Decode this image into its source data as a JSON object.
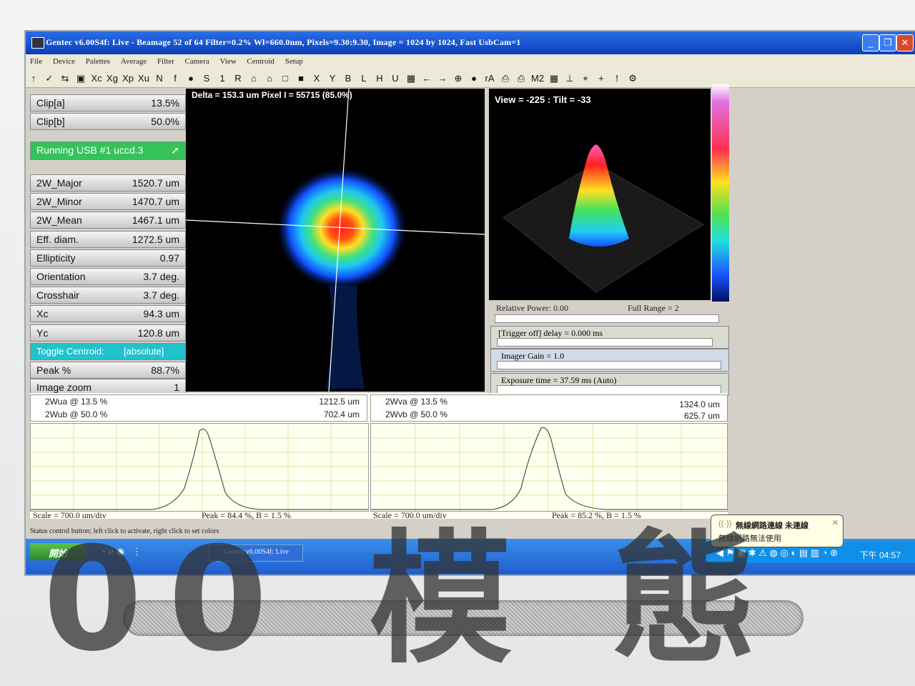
{
  "window": {
    "title": "Gentec v6.00S4f: Live - Beamage 52 of 64       Filter=0.2%     Wl=660.0nm, Pixels=9.30:9.30, Image = 1024 by 1024, Fast   UsbCam=1"
  },
  "menu": [
    "File",
    "Device",
    "Palettes",
    "Average",
    "Filter",
    "Camera",
    "View",
    "Centroid",
    "Setup"
  ],
  "toolbar": [
    "↑",
    "✓",
    "⇆",
    "▣",
    "Xc",
    "Xg",
    "Xp",
    "Xu",
    "N",
    "f",
    "●",
    "S",
    "1",
    "R",
    "⌂",
    "⌂",
    "□",
    "■",
    "X",
    "Y",
    "B",
    "L",
    "H",
    "U",
    "▦",
    "←",
    "→",
    "⊕",
    "●",
    "rA",
    "⎙",
    "⎙",
    "M2",
    "▦",
    "⊥",
    "⌖",
    "+",
    "!",
    "⚙"
  ],
  "params": {
    "clip_a": {
      "label": "Clip[a]",
      "value": "13.5%"
    },
    "clip_b": {
      "label": "Clip[b]",
      "value": "50.0%"
    },
    "running": "Running USB #1 uccd.3",
    "rows": [
      {
        "label": "2W_Major",
        "value": "1520.7 um"
      },
      {
        "label": "2W_Minor",
        "value": "1470.7 um"
      },
      {
        "label": "2W_Mean",
        "value": "1467.1 um"
      },
      {
        "label": "Eff. diam.",
        "value": "1272.5 um"
      },
      {
        "label": "Ellipticity",
        "value": "0.97"
      },
      {
        "label": "Orientation",
        "value": "3.7 deg."
      },
      {
        "label": "Crosshair",
        "value": "3.7 deg."
      },
      {
        "label": "Xc",
        "value": "94.3 um"
      },
      {
        "label": "Yc",
        "value": "120.8 um"
      }
    ],
    "toggle_centroid": {
      "label": "Toggle Centroid:",
      "value": "[absolute]"
    },
    "peak": {
      "label": "Peak %",
      "value": "88.7%"
    },
    "image_zoom": {
      "label": "Image zoom",
      "value": "1"
    }
  },
  "beam_caption": "Delta = 153.3 um Pixel I = 55715 (85.0%)",
  "view3d_caption": "View = -225 : Tilt = -33",
  "controls": {
    "relative_power": "Relative Power: 0.00",
    "full_range": "Full Range = 2",
    "trigger": "[Trigger off] delay = 0.000 ms",
    "gain": "Imager Gain = 1.0",
    "exposure": "Exposure time = 37.59 ms (Auto)"
  },
  "profiles": {
    "a": {
      "label1": "2Wua @ 13.5 %",
      "value1": "1212.5 um",
      "label2": "2Wub @ 50.0 %",
      "value2": "702.4 um",
      "scale": "Scale = 700.0 um/div",
      "peak": "Peak = 84.4 %,  B = 1.5 %"
    },
    "b": {
      "label1": "2Wva @ 13.5 %",
      "value1": "1324.0 um",
      "label2": "2Wvb @ 50.0 %",
      "value2": "625.7 um",
      "scale": "Scale = 700.0 um/div",
      "peak": "Peak = 85.2 %,  B = 1.5 %"
    }
  },
  "status_text": "Status control button; left click to activate, right click to set colors",
  "taskbar": {
    "start": "開始",
    "app": "Gentec v6.00S4f: Live",
    "clock": "下午 04:57"
  },
  "balloon": {
    "title": "無線網路連線 未連線",
    "body": "無線網路無法使用"
  },
  "watermark": "00 模 態"
}
